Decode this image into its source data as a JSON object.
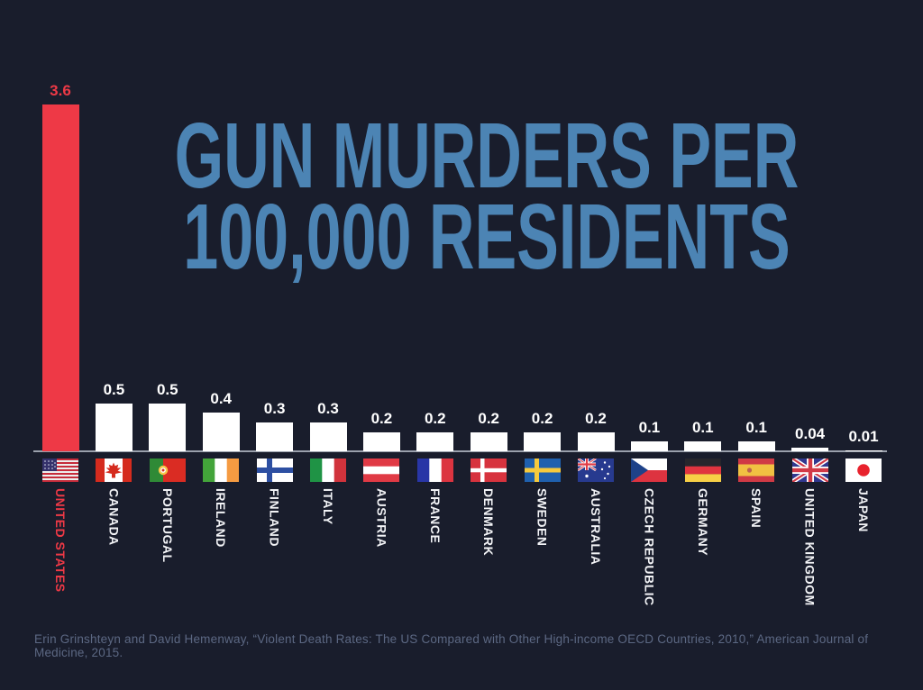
{
  "page": {
    "background": "#191d2c"
  },
  "title": {
    "line1": "GUN MURDERS PER",
    "line2": "100,000 RESIDENTS",
    "color": "#4c84b4"
  },
  "citation": {
    "text": "Erin Grinshteyn and David Hemenway, “Violent Death Rates: The US Compared with Other High-income OECD Countries, 2010,” American Journal of Medicine, 2015."
  },
  "colors": {
    "highlight_red": "#ee3946",
    "bar_white": "#ffffff",
    "axis_gray": "#9aa0ac",
    "citation_gray": "#5c6883"
  },
  "chart_data": {
    "type": "bar",
    "title": "GUN MURDERS PER 100,000 RESIDENTS",
    "xlabel": "",
    "ylabel": "",
    "ylim": [
      0,
      3.7
    ],
    "grid": false,
    "legend": false,
    "highlight_index": 0,
    "categories": [
      "UNITED STATES",
      "CANADA",
      "PORTUGAL",
      "IRELAND",
      "FINLAND",
      "ITALY",
      "AUSTRIA",
      "FRANCE",
      "DENMARK",
      "SWEDEN",
      "AUSTRALIA",
      "CZECH REPUBLIC",
      "GERMANY",
      "SPAIN",
      "UNITED KINGDOM",
      "JAPAN"
    ],
    "values": [
      3.6,
      0.5,
      0.5,
      0.4,
      0.3,
      0.3,
      0.2,
      0.2,
      0.2,
      0.2,
      0.2,
      0.1,
      0.1,
      0.1,
      0.04,
      0.01
    ],
    "value_labels": [
      "3.6",
      "0.5",
      "0.5",
      "0.4",
      "0.3",
      "0.3",
      "0.2",
      "0.2",
      "0.2",
      "0.2",
      "0.2",
      "0.1",
      "0.1",
      "0.1",
      "0.04",
      "0.01"
    ],
    "flags": [
      "us",
      "ca",
      "pt",
      "ie",
      "fi",
      "it",
      "at",
      "fr",
      "dk",
      "se",
      "au",
      "cz",
      "de",
      "es",
      "gb",
      "jp"
    ],
    "source": "Erin Grinshteyn and David Hemenway, “Violent Death Rates: The US Compared with Other High-income OECD Countries, 2010,” American Journal of Medicine, 2015."
  }
}
